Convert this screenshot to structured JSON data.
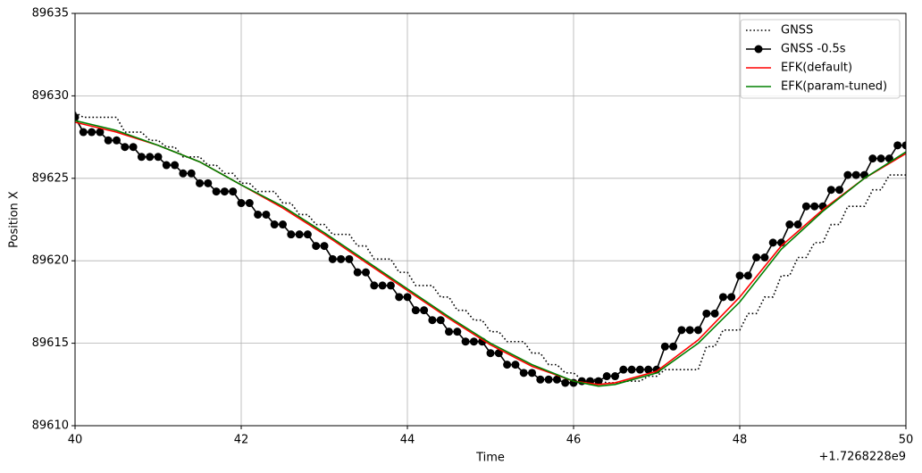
{
  "chart_data": {
    "type": "line",
    "xlabel": "Time",
    "ylabel": "Position X",
    "x_offset_label": "+1.7268228e9",
    "xlim": [
      40,
      50
    ],
    "ylim": [
      89610,
      89635
    ],
    "xticks": [
      40,
      42,
      44,
      46,
      48,
      50
    ],
    "yticks": [
      89610,
      89615,
      89620,
      89625,
      89630,
      89635
    ],
    "grid": true,
    "legend": "upper right",
    "x": [
      40.0,
      40.1,
      40.2,
      40.3,
      40.4,
      40.5,
      40.6,
      40.7,
      40.8,
      40.9,
      41.0,
      41.1,
      41.2,
      41.3,
      41.4,
      41.5,
      41.6,
      41.7,
      41.8,
      41.9,
      42.0,
      42.1,
      42.2,
      42.3,
      42.4,
      42.5,
      42.6,
      42.7,
      42.8,
      42.9,
      43.0,
      43.1,
      43.2,
      43.3,
      43.4,
      43.5,
      43.6,
      43.7,
      43.8,
      43.9,
      44.0,
      44.1,
      44.2,
      44.3,
      44.4,
      44.5,
      44.6,
      44.7,
      44.8,
      44.9,
      45.0,
      45.1,
      45.2,
      45.3,
      45.4,
      45.5,
      45.6,
      45.7,
      45.8,
      45.9,
      46.0,
      46.1,
      46.2,
      46.3,
      46.4,
      46.5,
      46.6,
      46.7,
      46.8,
      46.9,
      47.0,
      47.1,
      47.2,
      47.3,
      47.4,
      47.5,
      47.6,
      47.7,
      47.8,
      47.9,
      48.0,
      48.1,
      48.2,
      48.3,
      48.4,
      48.5,
      48.6,
      48.7,
      48.8,
      48.9,
      49.0,
      49.1,
      49.2,
      49.3,
      49.4,
      49.5,
      49.6,
      49.7,
      49.8,
      49.9,
      50.0
    ],
    "series": [
      {
        "name": "GNSS",
        "color": "#000000",
        "style": "dotted",
        "marker": null,
        "values": [
          89629.0,
          89628.7,
          89628.7,
          89628.7,
          89628.7,
          89628.7,
          89627.8,
          89627.8,
          89627.8,
          89627.3,
          89627.3,
          89626.9,
          89626.9,
          89626.3,
          89626.3,
          89626.3,
          89625.8,
          89625.8,
          89625.3,
          89625.3,
          89624.7,
          89624.7,
          89624.2,
          89624.2,
          89624.2,
          89623.5,
          89623.5,
          89622.8,
          89622.8,
          89622.2,
          89622.2,
          89621.6,
          89621.6,
          89621.6,
          89620.9,
          89620.9,
          89620.1,
          89620.1,
          89620.1,
          89619.3,
          89619.3,
          89618.5,
          89618.5,
          89618.5,
          89617.8,
          89617.8,
          89617.0,
          89617.0,
          89616.4,
          89616.4,
          89615.7,
          89615.7,
          89615.1,
          89615.1,
          89615.1,
          89614.4,
          89614.4,
          89613.7,
          89613.7,
          89613.2,
          89613.2,
          89612.8,
          89612.8,
          89612.8,
          89612.6,
          89612.6,
          89612.7,
          89612.7,
          89612.7,
          89613.0,
          89613.0,
          89613.4,
          89613.4,
          89613.4,
          89613.4,
          89613.4,
          89614.8,
          89614.8,
          89615.8,
          89615.8,
          89615.8,
          89616.8,
          89616.8,
          89617.8,
          89617.8,
          89619.1,
          89619.1,
          89620.2,
          89620.2,
          89621.1,
          89621.1,
          89622.2,
          89622.2,
          89623.3,
          89623.3,
          89623.3,
          89624.3,
          89624.3,
          89625.2,
          89625.2,
          89625.2
        ]
      },
      {
        "name": "GNSS -0.5s",
        "color": "#000000",
        "style": "solid",
        "marker": "o",
        "values": [
          89628.7,
          89627.8,
          89627.8,
          89627.8,
          89627.3,
          89627.3,
          89626.9,
          89626.9,
          89626.3,
          89626.3,
          89626.3,
          89625.8,
          89625.8,
          89625.3,
          89625.3,
          89624.7,
          89624.7,
          89624.2,
          89624.2,
          89624.2,
          89623.5,
          89623.5,
          89622.8,
          89622.8,
          89622.2,
          89622.2,
          89621.6,
          89621.6,
          89621.6,
          89620.9,
          89620.9,
          89620.1,
          89620.1,
          89620.1,
          89619.3,
          89619.3,
          89618.5,
          89618.5,
          89618.5,
          89617.8,
          89617.8,
          89617.0,
          89617.0,
          89616.4,
          89616.4,
          89615.7,
          89615.7,
          89615.1,
          89615.1,
          89615.1,
          89614.4,
          89614.4,
          89613.7,
          89613.7,
          89613.2,
          89613.2,
          89612.8,
          89612.8,
          89612.8,
          89612.6,
          89612.6,
          89612.7,
          89612.7,
          89612.7,
          89613.0,
          89613.0,
          89613.4,
          89613.4,
          89613.4,
          89613.4,
          89613.4,
          89614.8,
          89614.8,
          89615.8,
          89615.8,
          89615.8,
          89616.8,
          89616.8,
          89617.8,
          89617.8,
          89619.1,
          89619.1,
          89620.2,
          89620.2,
          89621.1,
          89621.1,
          89622.2,
          89622.2,
          89623.3,
          89623.3,
          89623.3,
          89624.3,
          89624.3,
          89625.2,
          89625.2,
          89625.2,
          89626.2,
          89626.2,
          89626.2,
          89627.0,
          89627.0
        ]
      },
      {
        "name": "EFK(default)",
        "color": "#ff0000",
        "style": "solid",
        "marker": null,
        "x": [
          40.0,
          40.5,
          41.0,
          41.5,
          42.0,
          42.5,
          43.0,
          43.5,
          44.0,
          44.5,
          45.0,
          45.5,
          46.0,
          46.3,
          46.5,
          47.0,
          47.5,
          48.0,
          48.5,
          49.0,
          49.5,
          50.0
        ],
        "values": [
          89628.4,
          89627.8,
          89627.0,
          89626.0,
          89624.6,
          89623.2,
          89621.6,
          89619.9,
          89618.2,
          89616.5,
          89614.9,
          89613.6,
          89612.7,
          89612.5,
          89612.6,
          89613.3,
          89615.2,
          89617.8,
          89620.9,
          89623.1,
          89625.0,
          89626.5
        ]
      },
      {
        "name": "EFK(param-tuned)",
        "color": "#008000",
        "style": "solid",
        "marker": null,
        "x": [
          40.0,
          40.5,
          41.0,
          41.5,
          42.0,
          42.5,
          43.0,
          43.5,
          44.0,
          44.5,
          45.0,
          45.5,
          46.0,
          46.3,
          46.5,
          47.0,
          47.5,
          48.0,
          48.5,
          49.0,
          49.5,
          50.0
        ],
        "values": [
          89628.5,
          89627.9,
          89627.0,
          89626.0,
          89624.6,
          89623.3,
          89621.7,
          89620.0,
          89618.3,
          89616.6,
          89615.0,
          89613.7,
          89612.7,
          89612.4,
          89612.5,
          89613.2,
          89615.0,
          89617.5,
          89620.7,
          89623.0,
          89625.0,
          89626.6
        ]
      }
    ]
  }
}
